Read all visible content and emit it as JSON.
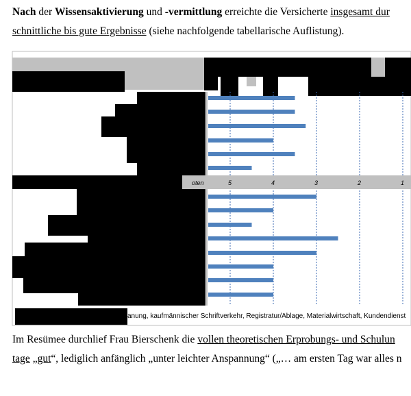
{
  "para1": {
    "line1": [
      {
        "t": "Nach",
        "b": true
      },
      {
        "t": " der ",
        "b": false
      },
      {
        "t": "Wissensaktivierung",
        "b": true
      },
      {
        "t": " und ",
        "b": false
      },
      {
        "t": "-vermittlung",
        "b": true
      },
      {
        "t": " erreichte die Versicherte ",
        "b": false
      },
      {
        "t": "insgesamt dur",
        "u": true
      }
    ],
    "line2_underlined": "schnittliche bis gute Ergebnisse",
    "line2_rest": " (siehe nachfolgende tabellarische Auflistung)."
  },
  "chart_data": {
    "type": "bar",
    "x_axis_label_partial": "oten",
    "ticks": [
      "5",
      "4",
      "3",
      "2",
      "1"
    ],
    "group1_values": [
      3.5,
      3.5,
      3.25,
      4.0,
      3.5,
      4.5
    ],
    "group2_values": [
      3.0,
      4.0,
      4.5,
      2.5,
      3.0,
      4.0,
      4.0,
      4.0
    ]
  },
  "caption": "anung, kaufmännischer Schriftverkehr, Registratur/Ablage, Materialwirtschaft, Kundendienst",
  "para2": {
    "line1_pre": "Im Resümee durchlief Frau Bierschenk die ",
    "line1_underlined": "vollen theoretischen Erprobungs- und Schulun",
    "line2_underlined_a": "tage",
    "line2_mid1": " „",
    "line2_underlined_b": "gut",
    "line2_rest": "“, lediglich anfänglich „unter leichter Anspannung“ („… am ersten Tag war alles n"
  }
}
